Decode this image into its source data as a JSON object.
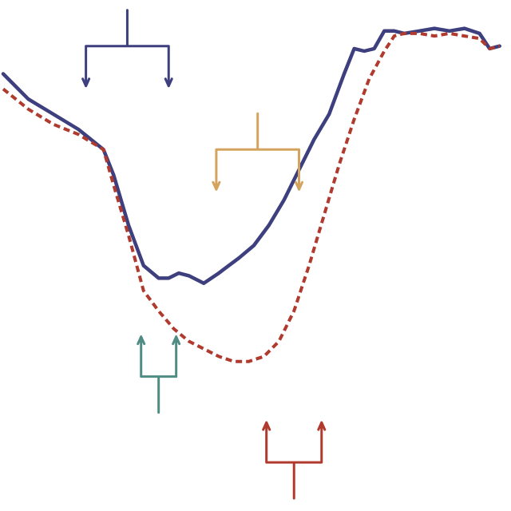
{
  "chart_data": {
    "type": "line",
    "title": "",
    "xlabel": "",
    "ylabel": "",
    "grid": false,
    "legend": "none",
    "xlim": [
      0,
      100
    ],
    "ylim": [
      0,
      100
    ],
    "series": [
      {
        "style": "solid",
        "color": "#3d3f7e",
        "x": [
          0,
          5,
          10,
          15,
          20,
          22,
          25,
          28,
          31,
          33,
          35,
          37,
          40,
          43,
          45,
          47,
          50,
          53,
          56,
          59,
          62,
          65,
          68,
          70,
          72,
          74,
          76,
          78,
          80,
          83,
          86,
          89,
          92,
          95,
          97,
          99
        ],
        "y": [
          86,
          81,
          78,
          75,
          71,
          66,
          56,
          48,
          45.5,
          45.5,
          46.5,
          46,
          44.5,
          46.5,
          48,
          49.5,
          52,
          56,
          61,
          67,
          73,
          78,
          86,
          91,
          90.5,
          91,
          94.5,
          94.5,
          94,
          94.5,
          95,
          94.5,
          95,
          94,
          91,
          91.5
        ]
      },
      {
        "style": "dashed",
        "color": "#b03a2e",
        "x": [
          0,
          5,
          10,
          15,
          20,
          22,
          25,
          28,
          31,
          34,
          37,
          40,
          43,
          46,
          49,
          52,
          55,
          58,
          61,
          64,
          67,
          70,
          73,
          76,
          78,
          80,
          83,
          86,
          89,
          92,
          95,
          97,
          99
        ],
        "y": [
          83,
          79,
          76,
          74,
          71,
          64,
          54,
          43,
          39,
          35.5,
          33,
          31.5,
          30,
          29,
          29,
          30,
          33,
          39,
          48,
          58,
          68,
          77,
          85,
          90.5,
          93.5,
          94,
          94,
          93.5,
          94,
          93.5,
          93,
          91,
          91.5
        ]
      }
    ],
    "brackets": [
      {
        "color": "#3d3f7e",
        "x_range": [
          16.5,
          33
        ],
        "y": 91.5,
        "orientation": "down"
      },
      {
        "color": "#d4a35d",
        "x_range": [
          42.5,
          59
        ],
        "y": 71,
        "orientation": "down"
      },
      {
        "color": "#4f8c84",
        "x_range": [
          27.5,
          34.5
        ],
        "y": 26,
        "orientation": "up"
      },
      {
        "color": "#b03a2e",
        "x_range": [
          52.5,
          63.5
        ],
        "y": 9,
        "orientation": "up"
      }
    ]
  }
}
